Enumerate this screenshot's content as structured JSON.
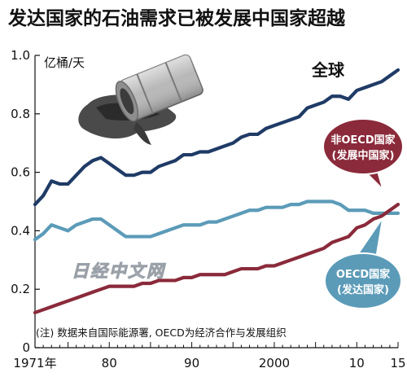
{
  "chart_data": {
    "type": "line",
    "title": "发达国家的石油需求已被发展中国家超越",
    "ylabel": "亿桶/天",
    "x_tick_labels": [
      "1971年",
      "80",
      "90",
      "2000",
      "10",
      "15"
    ],
    "x_ticks": [
      1971,
      1980,
      1990,
      2000,
      2010,
      2015
    ],
    "ylim": [
      0,
      1.0
    ],
    "yticks": [
      0,
      0.2,
      0.4,
      0.6,
      0.8,
      1.0
    ],
    "y_tick_labels": [
      "0",
      "0.2",
      "0.4",
      "0.6",
      "0.8",
      "1.0"
    ],
    "xlim": [
      1971,
      2015
    ],
    "grid": false,
    "note": "(注) 数据来自国际能源署, OECD为经济合作与发展组织",
    "watermark": "日经中文网",
    "series": [
      {
        "name": "全球",
        "color": "#1f3b66",
        "x": [
          1971,
          1972,
          1973,
          1974,
          1975,
          1976,
          1977,
          1978,
          1979,
          1980,
          1981,
          1982,
          1983,
          1984,
          1985,
          1986,
          1987,
          1988,
          1989,
          1990,
          1991,
          1992,
          1993,
          1994,
          1995,
          1996,
          1997,
          1998,
          1999,
          2000,
          2001,
          2002,
          2003,
          2004,
          2005,
          2006,
          2007,
          2008,
          2009,
          2010,
          2011,
          2012,
          2013,
          2014,
          2015
        ],
        "y": [
          0.49,
          0.52,
          0.57,
          0.56,
          0.56,
          0.59,
          0.62,
          0.64,
          0.65,
          0.63,
          0.61,
          0.59,
          0.59,
          0.6,
          0.6,
          0.62,
          0.63,
          0.64,
          0.66,
          0.66,
          0.67,
          0.67,
          0.68,
          0.69,
          0.7,
          0.72,
          0.73,
          0.73,
          0.75,
          0.76,
          0.77,
          0.78,
          0.79,
          0.82,
          0.83,
          0.84,
          0.86,
          0.86,
          0.85,
          0.88,
          0.89,
          0.9,
          0.91,
          0.93,
          0.95
        ],
        "label": "全球"
      },
      {
        "name": "OECD国家(发达国家)",
        "color": "#5b9bb8",
        "x": [
          1971,
          1972,
          1973,
          1974,
          1975,
          1976,
          1977,
          1978,
          1979,
          1980,
          1981,
          1982,
          1983,
          1984,
          1985,
          1986,
          1987,
          1988,
          1989,
          1990,
          1991,
          1992,
          1993,
          1994,
          1995,
          1996,
          1997,
          1998,
          1999,
          2000,
          2001,
          2002,
          2003,
          2004,
          2005,
          2006,
          2007,
          2008,
          2009,
          2010,
          2011,
          2012,
          2013,
          2014,
          2015
        ],
        "y": [
          0.37,
          0.39,
          0.42,
          0.41,
          0.4,
          0.42,
          0.43,
          0.44,
          0.44,
          0.42,
          0.4,
          0.38,
          0.38,
          0.38,
          0.38,
          0.39,
          0.4,
          0.41,
          0.42,
          0.42,
          0.42,
          0.43,
          0.43,
          0.44,
          0.45,
          0.46,
          0.47,
          0.47,
          0.48,
          0.48,
          0.48,
          0.49,
          0.49,
          0.5,
          0.5,
          0.5,
          0.5,
          0.49,
          0.47,
          0.47,
          0.47,
          0.46,
          0.46,
          0.46,
          0.46
        ],
        "label": "OECD国家\n(发达国家)"
      },
      {
        "name": "非OECD国家(发展中国家)",
        "color": "#8a2a3a",
        "x": [
          1971,
          1972,
          1973,
          1974,
          1975,
          1976,
          1977,
          1978,
          1979,
          1980,
          1981,
          1982,
          1983,
          1984,
          1985,
          1986,
          1987,
          1988,
          1989,
          1990,
          1991,
          1992,
          1993,
          1994,
          1995,
          1996,
          1997,
          1998,
          1999,
          2000,
          2001,
          2002,
          2003,
          2004,
          2005,
          2006,
          2007,
          2008,
          2009,
          2010,
          2011,
          2012,
          2013,
          2014,
          2015
        ],
        "y": [
          0.12,
          0.13,
          0.14,
          0.15,
          0.16,
          0.17,
          0.18,
          0.19,
          0.2,
          0.21,
          0.21,
          0.21,
          0.21,
          0.22,
          0.22,
          0.23,
          0.23,
          0.23,
          0.24,
          0.24,
          0.25,
          0.25,
          0.25,
          0.25,
          0.26,
          0.27,
          0.27,
          0.27,
          0.28,
          0.28,
          0.29,
          0.3,
          0.31,
          0.32,
          0.33,
          0.34,
          0.36,
          0.37,
          0.38,
          0.41,
          0.42,
          0.44,
          0.45,
          0.47,
          0.49
        ],
        "label": "非OECD国家\n(发展中国家)"
      }
    ]
  }
}
